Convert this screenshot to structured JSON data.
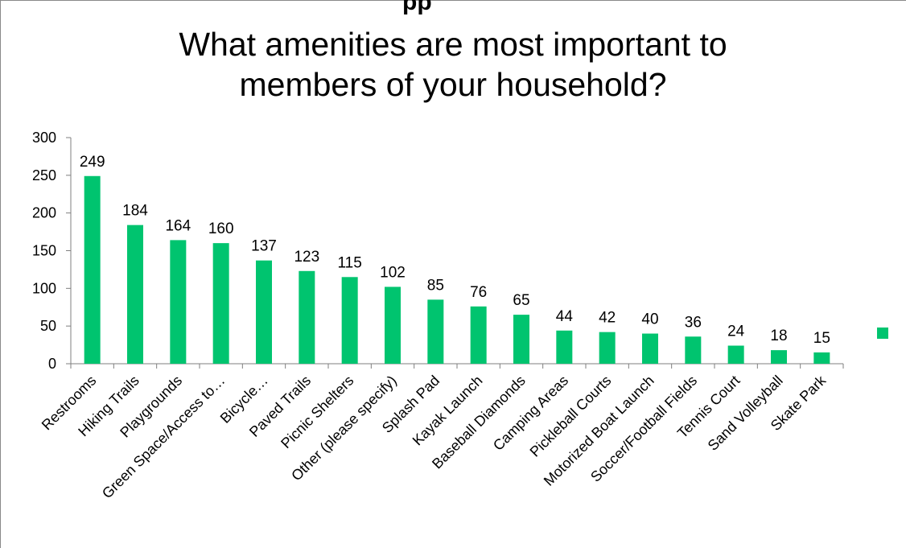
{
  "page": {
    "top_cut_text": "pp"
  },
  "colors": {
    "bar": "#00c46f",
    "axis": "#7f7f7f",
    "frame": "#8a8a8a"
  },
  "chart_data": {
    "type": "bar",
    "title": "What amenities are most important to members of your household?",
    "title_lines": [
      "What amenities are most important to",
      "members of your household?"
    ],
    "xlabel": "",
    "ylabel": "",
    "ylim": [
      0,
      300
    ],
    "yticks": [
      0,
      50,
      100,
      150,
      200,
      250,
      300
    ],
    "grid": false,
    "legend": "right",
    "categories": [
      "Restrooms",
      "Hiking Trails",
      "Playgrounds",
      "Green Space/Access to…",
      "Bicycle…",
      "Paved Trails",
      "Picnic Shelters",
      "Other (please specify)",
      "Splash Pad",
      "Kayak Launch",
      "Baseball Diamonds",
      "Camping Areas",
      "Pickleball Courts",
      "Motorized Boat Launch",
      "Soccer/Football Fields",
      "Tennis Court",
      "Sand Volleyball",
      "Skate Park"
    ],
    "values": [
      249,
      184,
      164,
      160,
      137,
      123,
      115,
      102,
      85,
      76,
      65,
      44,
      42,
      40,
      36,
      24,
      18,
      15
    ],
    "data_labels": true
  }
}
